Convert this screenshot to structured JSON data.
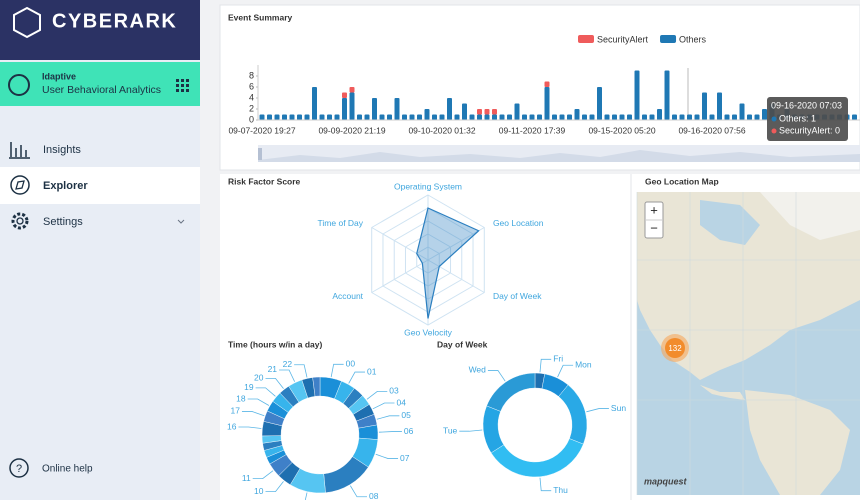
{
  "sidebar": {
    "brand": "CYBERARK",
    "product": "Idaptive",
    "app": "User Behavioral Analytics",
    "nav": [
      "Insights",
      "Explorer",
      "Settings"
    ],
    "help": "Online help"
  },
  "chart_data": [
    {
      "type": "stacked_bar",
      "title": "Event Summary",
      "categories": [
        "09-07-2020 19:27",
        null,
        null,
        null,
        null,
        null,
        null,
        null,
        null,
        null,
        null,
        null,
        "09-09-2020 21:19",
        null,
        null,
        null,
        null,
        null,
        null,
        null,
        null,
        null,
        null,
        null,
        "09-10-2020 01:32",
        null,
        null,
        null,
        null,
        null,
        null,
        null,
        null,
        null,
        null,
        null,
        "09-11-2020 17:39",
        null,
        null,
        null,
        null,
        null,
        null,
        null,
        null,
        null,
        null,
        null,
        "09-15-2020 05:20",
        null,
        null,
        null,
        null,
        null,
        null,
        null,
        null,
        null,
        null,
        null,
        "09-16-2020 07:56",
        null,
        null,
        null,
        null,
        null,
        null,
        null,
        null,
        null,
        null,
        null,
        null,
        null,
        null,
        null,
        null,
        null,
        null,
        null
      ],
      "series": [
        {
          "name": "SecurityAlert",
          "color": "#ef5b5b",
          "values": [
            0,
            0,
            0,
            0,
            0,
            0,
            0,
            0,
            0,
            0,
            0,
            1,
            1,
            0,
            0,
            0,
            0,
            0,
            0,
            0,
            0,
            0,
            0,
            0,
            0,
            0,
            0,
            0,
            0,
            1,
            1,
            1,
            0,
            0,
            0,
            0,
            0,
            0,
            1,
            0,
            0,
            0,
            0,
            0,
            0,
            0,
            0,
            0,
            0,
            0,
            0,
            0,
            0,
            0,
            0,
            0,
            0,
            0,
            0,
            0,
            0,
            0,
            0,
            0,
            0,
            0,
            0,
            0,
            0,
            0,
            0,
            0,
            0,
            0,
            0,
            0,
            0,
            0,
            0,
            0
          ]
        },
        {
          "name": "Others",
          "color": "#1f78b4",
          "values": [
            1,
            1,
            1,
            1,
            1,
            1,
            1,
            6,
            1,
            1,
            1,
            4,
            5,
            1,
            1,
            4,
            1,
            1,
            4,
            1,
            1,
            1,
            2,
            1,
            1,
            4,
            1,
            3,
            1,
            1,
            1,
            1,
            1,
            1,
            3,
            1,
            1,
            1,
            6,
            1,
            1,
            1,
            2,
            1,
            1,
            6,
            1,
            1,
            1,
            1,
            9,
            1,
            1,
            2,
            9,
            1,
            1,
            1,
            1,
            5,
            1,
            5,
            1,
            1,
            3,
            1,
            1,
            2,
            3,
            1,
            2,
            1,
            1,
            1,
            1,
            1,
            1,
            1,
            1,
            1
          ]
        }
      ],
      "ylim": [
        0,
        10
      ],
      "yticks": [
        0,
        2,
        4,
        6,
        8
      ],
      "tooltip": {
        "title": "09-16-2020 07:03",
        "lines": [
          "Others: 1",
          "SecurityAlert: 0"
        ]
      }
    },
    {
      "type": "radar",
      "title": "Risk Factor Score",
      "categories": [
        "Operating System",
        "Geo Location",
        "Day of Week",
        "Geo Velocity",
        "Account",
        "Time of Day"
      ],
      "series": [
        {
          "color": "#2b7fc0",
          "values": [
            0.8,
            0.9,
            0.2,
            0.9,
            0.1,
            0.2
          ]
        }
      ],
      "ylim": [
        0,
        1
      ]
    },
    {
      "type": "donut",
      "title": "Time (hours w/in a day)",
      "categories": [
        "00",
        "01",
        null,
        "03",
        "04",
        "05",
        "06",
        "07",
        "08",
        "09",
        "10",
        "11",
        null,
        null,
        null,
        null,
        "16",
        "17",
        "18",
        "19",
        "20",
        "21",
        "22",
        null
      ],
      "values": [
        6,
        4,
        3,
        3,
        3,
        3,
        4,
        8,
        14,
        10,
        4,
        4,
        2,
        2,
        2,
        2,
        4,
        3,
        3,
        3,
        3,
        4,
        3,
        2
      ],
      "colors": [
        "#1a8fd8",
        "#37b4ec",
        "#2b7fc0",
        "#56c5f2",
        "#1e6fb0",
        "#3f80c8"
      ]
    },
    {
      "type": "donut",
      "title": "Day of Week",
      "categories": [
        "Fri",
        "Mon",
        "Sun",
        "Thu",
        "Tue",
        "Wed"
      ],
      "values": [
        3,
        8,
        20,
        35,
        15,
        19
      ],
      "colors": [
        "#1e6fb0",
        "#1a8fd8",
        "#29a9e6",
        "#31bdf2",
        "#25a5e4",
        "#2a9ad6"
      ]
    }
  ],
  "map": {
    "title": "Geo Location Map",
    "zoom_in": "+",
    "zoom_out": "−",
    "clusters": [
      {
        "count": 132
      }
    ],
    "attribution": "mapquest"
  }
}
